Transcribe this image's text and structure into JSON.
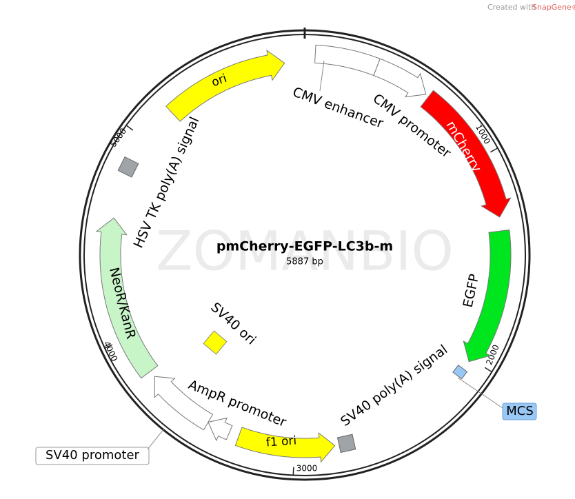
{
  "header": {
    "credit_prefix": "Created with",
    "credit_brand": "SnapGene®"
  },
  "plasmid": {
    "name": "pmCherry-EGFP-LC3b-m",
    "size": "5887 bp",
    "watermark": "ZOMANBIO",
    "ticks": [
      "1000",
      "2000",
      "3000",
      "4000",
      "5000"
    ],
    "features": [
      {
        "label": "CMV enhancer"
      },
      {
        "label": "CMV promoter"
      },
      {
        "label": "mCherry"
      },
      {
        "label": "EGFP"
      },
      {
        "label": "MCS"
      },
      {
        "label": "SV40 poly(A) signal"
      },
      {
        "label": "f1 ori"
      },
      {
        "label": "AmpR promoter"
      },
      {
        "label": "SV40 promoter"
      },
      {
        "label": "NeoR/KanR"
      },
      {
        "label": "HSV TK poly(A) signal"
      },
      {
        "label": "ori"
      },
      {
        "label": "SV40 ori"
      }
    ]
  }
}
